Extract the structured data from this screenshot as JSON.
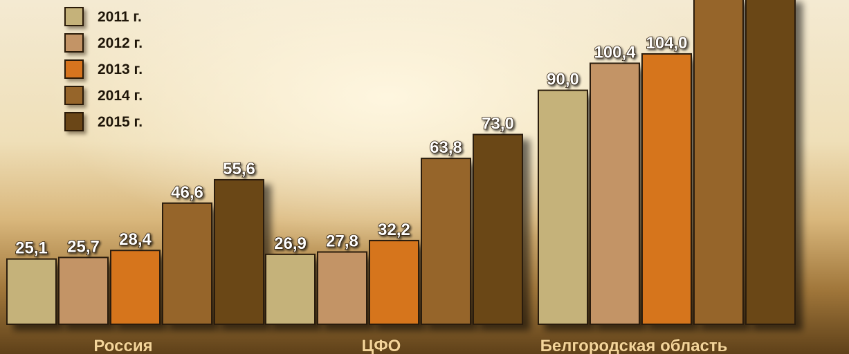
{
  "chart_data": {
    "type": "bar",
    "categories": [
      "Россия",
      "ЦФО",
      "Белгородская область"
    ],
    "series": [
      {
        "name": "2011 г.",
        "color": "#c5b27a",
        "values": [
          25.1,
          26.9,
          90.0
        ]
      },
      {
        "name": "2012 г.",
        "color": "#c39466",
        "values": [
          25.7,
          27.8,
          100.4
        ]
      },
      {
        "name": "2013 г.",
        "color": "#d6741e",
        "values": [
          28.4,
          32.2,
          104.0
        ]
      },
      {
        "name": "2014 г.",
        "color": "#96652a",
        "values": [
          46.6,
          63.8,
          null
        ]
      },
      {
        "name": "2015 г.",
        "color": "#6a4617",
        "values": [
          55.6,
          73.0,
          null
        ]
      }
    ],
    "data_labels": [
      [
        "25,1",
        "25,7",
        "28,4",
        "46,6",
        "55,6"
      ],
      [
        "26,9",
        "27,8",
        "32,2",
        "63,8",
        "73,0"
      ],
      [
        "90,0",
        "100,4",
        "104,0",
        "",
        ""
      ]
    ],
    "title": "",
    "xlabel": "",
    "ylabel": "",
    "legend_position": "top-left",
    "grid": false
  }
}
